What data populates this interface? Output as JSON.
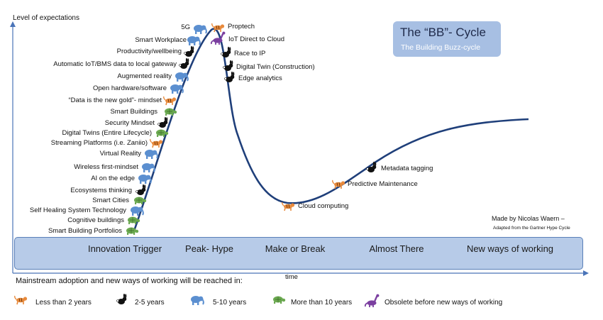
{
  "axes": {
    "y_label": "Level of expectations",
    "x_label": "time"
  },
  "title": {
    "main": "The “BB”- Cycle",
    "subtitle": "The Building Buzz-cycle"
  },
  "credit": {
    "line1": "Made by Nicolas Waern –",
    "line2": "Adapted from the Gartner Hype Cycle"
  },
  "phases": [
    {
      "label": "Innovation Trigger"
    },
    {
      "label": "Peak- Hype"
    },
    {
      "label": "Make or Break"
    },
    {
      "label": "Almost There"
    },
    {
      "label": "New ways of working"
    }
  ],
  "rising_items": [
    {
      "label": "5G",
      "type": "elephant"
    },
    {
      "label": "Smart Workplace",
      "type": "elephant"
    },
    {
      "label": "Productivity/wellbeing",
      "type": "rabbit"
    },
    {
      "label": "Automatic IoT/BMS data to local gateway",
      "type": "rabbit"
    },
    {
      "label": "Augmented reality",
      "type": "elephant"
    },
    {
      "label": "Open hardware/software",
      "type": "elephant"
    },
    {
      "label": "“Data is the new gold”- mindset",
      "type": "tiger"
    },
    {
      "label": "Smart Buildings",
      "type": "turtle"
    },
    {
      "label": "Security Mindset",
      "type": "rabbit"
    },
    {
      "label": "Digital Twins (Entire Lifecycle)",
      "type": "turtle"
    },
    {
      "label": "Streaming Platforms (i.e. Zaniio)",
      "type": "tiger"
    },
    {
      "label": "Virtual Reality",
      "type": "elephant"
    },
    {
      "label": "Wireless first-mindset",
      "type": "elephant"
    },
    {
      "label": "AI on the edge",
      "type": "elephant"
    },
    {
      "label": "Ecosystems thinking",
      "type": "rabbit"
    },
    {
      "label": "Smart Cities",
      "type": "turtle"
    },
    {
      "label": "Self Healing System Technology",
      "type": "elephant"
    },
    {
      "label": "Cognitive buildings",
      "type": "turtle"
    },
    {
      "label": "Smart Building Portfolios",
      "type": "turtle"
    }
  ],
  "peak_items": [
    {
      "label": "Proptech",
      "type": "tiger"
    },
    {
      "label": "IoT Direct to Cloud",
      "type": "dino"
    },
    {
      "label": "Race to IP",
      "type": "rabbit"
    },
    {
      "label": "Digital Twin (Construction)",
      "type": "rabbit"
    },
    {
      "label": "Edge analytics",
      "type": "rabbit"
    }
  ],
  "slope_items": [
    {
      "label": "Cloud computing",
      "type": "tiger"
    },
    {
      "label": "Predictive Maintenance",
      "type": "tiger"
    },
    {
      "label": "Metadata tagging",
      "type": "rabbit"
    }
  ],
  "legend": {
    "intro": "Mainstream adoption and new ways of working will be reached in:",
    "items": [
      {
        "label": "Less than 2 years",
        "type": "tiger"
      },
      {
        "label": "2-5 years",
        "type": "rabbit"
      },
      {
        "label": "5-10 years",
        "type": "elephant"
      },
      {
        "label": "More than 10 years",
        "type": "turtle"
      },
      {
        "label": "Obsolete before new ways of working",
        "type": "dino"
      }
    ]
  },
  "colors": {
    "curve": "#1f3f7a",
    "axis": "#4a74b8",
    "band": "#b7cbe8",
    "title_box": "#a7bfe3",
    "tiger": "#e88a3c",
    "rabbit": "#111111",
    "elephant": "#5b8fd0",
    "turtle": "#6aa84f",
    "dino": "#7b3fa0"
  }
}
